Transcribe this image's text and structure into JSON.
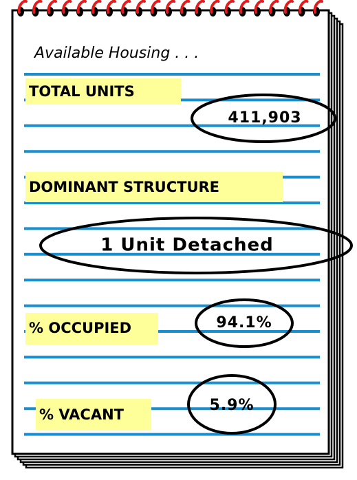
{
  "title": "Available Housing . . .",
  "items": [
    {
      "label": "TOTAL UNITS",
      "value": "411,903"
    },
    {
      "label": "DOMINANT STRUCTURE",
      "value": "1 Unit Detached"
    },
    {
      "label": "% OCCUPIED",
      "value": "94.1%"
    },
    {
      "label": "% VACANT",
      "value": "5.9%"
    }
  ]
}
